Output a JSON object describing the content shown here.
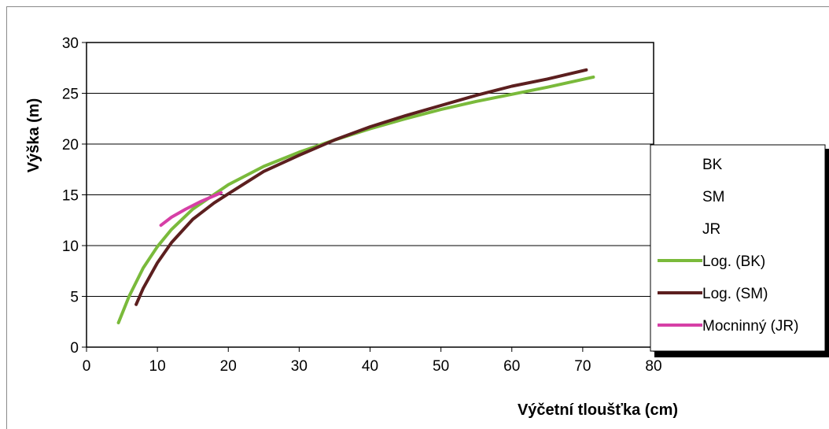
{
  "chart_data": {
    "type": "line",
    "title": "",
    "xlabel": "Výčetní tloušťka (cm)",
    "ylabel": "Výška (m)",
    "xlim": [
      0,
      80
    ],
    "ylim": [
      0,
      30
    ],
    "xticks": [
      0,
      10,
      20,
      30,
      40,
      50,
      60,
      70,
      80
    ],
    "yticks": [
      0,
      5,
      10,
      15,
      20,
      25,
      30
    ],
    "grid": "horizontal",
    "legend_position": "right",
    "legend": [
      {
        "label": "BK",
        "color": "",
        "line": false
      },
      {
        "label": "SM",
        "color": "",
        "line": false
      },
      {
        "label": "JR",
        "color": "",
        "line": false
      },
      {
        "label": "Log. (BK)",
        "color": "#7aba3b",
        "line": true
      },
      {
        "label": "Log. (SM)",
        "color": "#5c1f1f",
        "line": true
      },
      {
        "label": "Mocninný (JR)",
        "color": "#d63fa6",
        "line": true
      }
    ],
    "series": [
      {
        "name": "Log. (BK)",
        "color": "#7aba3b",
        "x": [
          4.5,
          6,
          8,
          10,
          12,
          15,
          20,
          25,
          30,
          35,
          40,
          45,
          50,
          55,
          60,
          65,
          71.5
        ],
        "y": [
          2.4,
          5.0,
          7.8,
          9.9,
          11.6,
          13.6,
          16.0,
          17.8,
          19.2,
          20.4,
          21.5,
          22.5,
          23.4,
          24.2,
          24.9,
          25.6,
          26.6
        ]
      },
      {
        "name": "Log. (SM)",
        "color": "#5c1f1f",
        "x": [
          7,
          8,
          10,
          12,
          15,
          18,
          20,
          25,
          30,
          35,
          40,
          45,
          50,
          55,
          60,
          65,
          70.5
        ],
        "y": [
          4.2,
          5.8,
          8.3,
          10.3,
          12.6,
          14.2,
          15.1,
          17.3,
          18.9,
          20.4,
          21.7,
          22.8,
          23.8,
          24.8,
          25.7,
          26.4,
          27.3
        ]
      },
      {
        "name": "Mocninný (JR)",
        "color": "#d63fa6",
        "x": [
          10.5,
          12,
          14,
          16,
          19
        ],
        "y": [
          12.0,
          12.8,
          13.6,
          14.3,
          15.2
        ]
      }
    ]
  }
}
